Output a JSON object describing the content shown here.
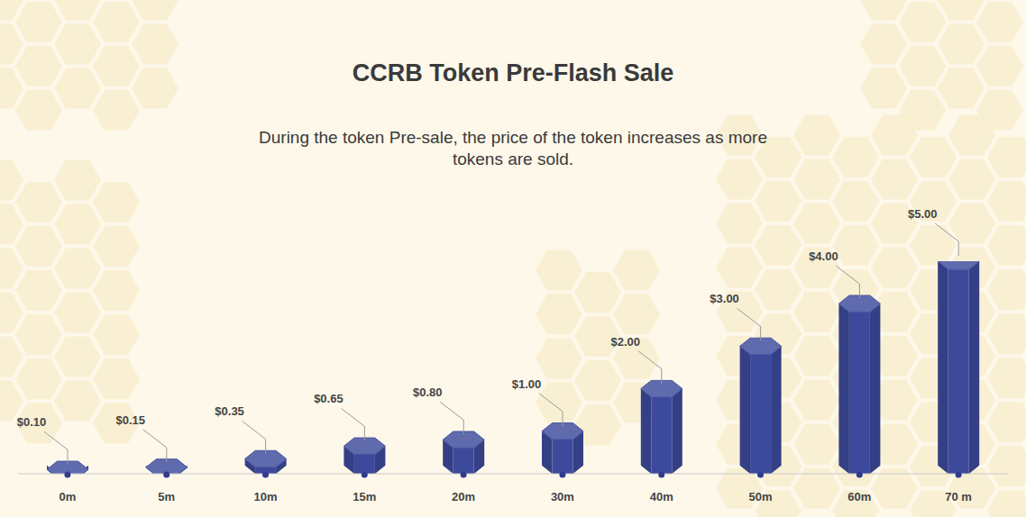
{
  "chart_data": {
    "type": "bar",
    "title": "CCRB Token Pre-Flash Sale",
    "subtitle": "During the token Pre-sale, the price of the token increases as more tokens are sold.",
    "categories": [
      "0m",
      "5m",
      "10m",
      "15m",
      "20m",
      "30m",
      "40m",
      "50m",
      "60m",
      "70 m"
    ],
    "values": [
      0.1,
      0.15,
      0.35,
      0.65,
      0.8,
      1.0,
      2.0,
      3.0,
      4.0,
      5.0
    ],
    "value_labels": [
      "$0.10",
      "$0.15",
      "$0.35",
      "$0.65",
      "$0.80",
      "$1.00",
      "$2.00",
      "$3.00",
      "$4.00",
      "$5.00"
    ],
    "color": "#3d4a9c",
    "ylim": [
      0,
      5
    ],
    "data_labels": true,
    "tick_labels": "x",
    "grid": false
  }
}
